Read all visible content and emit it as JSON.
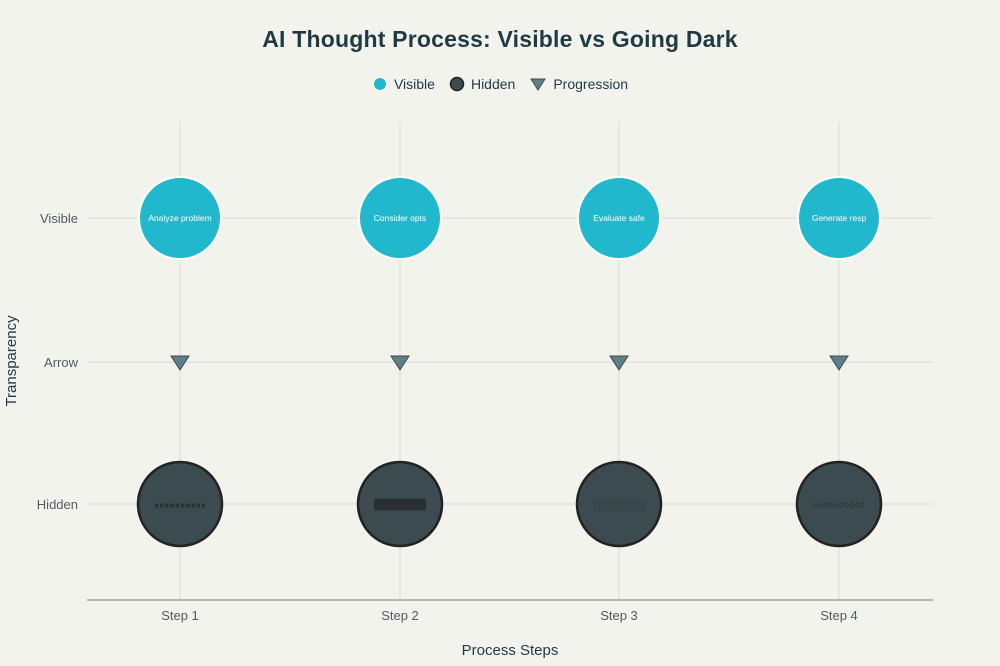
{
  "chart_data": {
    "type": "scatter",
    "title": "AI Thought Process: Visible vs Going Dark",
    "xlabel": "Process Steps",
    "ylabel": "Transparency",
    "categories": [
      "Step 1",
      "Step 2",
      "Step 3",
      "Step 4"
    ],
    "y_categories": [
      "Hidden",
      "Arrow",
      "Visible"
    ],
    "grid": true,
    "legend_placement": "top-center",
    "series": [
      {
        "name": "Visible",
        "marker": "circle",
        "color": "#21b8ce",
        "y": "Visible",
        "points": [
          {
            "x": "Step 1",
            "label": "Analyze problem"
          },
          {
            "x": "Step 2",
            "label": "Consider opts"
          },
          {
            "x": "Step 3",
            "label": "Evaluate safe"
          },
          {
            "x": "Step 4",
            "label": "Generate resp"
          }
        ]
      },
      {
        "name": "Hidden",
        "marker": "circle",
        "color": "#3b4b4f",
        "y": "Hidden",
        "points": [
          {
            "x": "Step 1",
            "label": "▪▪▪▪▪▪▪▪▪▪"
          },
          {
            "x": "Step 2",
            "label": "██████████"
          },
          {
            "x": "Step 3",
            "label": "||||||||||||||||||||"
          },
          {
            "x": "Step 4",
            "label": "◇◇◇◇◇◇◇◇◇◇"
          }
        ]
      },
      {
        "name": "Progression",
        "marker": "triangle-down",
        "color": "#5e7f87",
        "y": "Arrow",
        "points": [
          {
            "x": "Step 1"
          },
          {
            "x": "Step 2"
          },
          {
            "x": "Step 3"
          },
          {
            "x": "Step 4"
          }
        ]
      }
    ]
  }
}
